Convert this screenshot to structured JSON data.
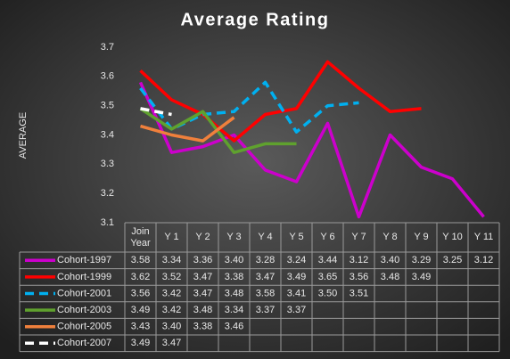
{
  "chart_data": {
    "type": "line",
    "title": "Average Rating",
    "y_label": "AVERAGE",
    "categories": [
      "Join Year",
      "Y 1",
      "Y 2",
      "Y 3",
      "Y 4",
      "Y 5",
      "Y 6",
      "Y 7",
      "Y 8",
      "Y 9",
      "Y 10",
      "Y 11"
    ],
    "ylim": [
      3.1,
      3.7
    ],
    "yticks": [
      3.1,
      3.2,
      3.3,
      3.4,
      3.5,
      3.6,
      3.7
    ],
    "grid": false,
    "series": [
      {
        "name": "Cohort-1997",
        "color": "#cc00cc",
        "dashed": false,
        "values": [
          3.58,
          3.34,
          3.36,
          3.4,
          3.28,
          3.24,
          3.44,
          3.12,
          3.4,
          3.29,
          3.25,
          3.12
        ],
        "value_labels": [
          "3.58",
          "3.34",
          "3.36",
          "3.40",
          "3.28",
          "3.24",
          "3.44",
          "3.12",
          "3.40",
          "3.29",
          "3.25",
          "3.12"
        ]
      },
      {
        "name": "Cohort-1999",
        "color": "#ff0000",
        "dashed": false,
        "values": [
          3.62,
          3.52,
          3.47,
          3.38,
          3.47,
          3.49,
          3.65,
          3.56,
          3.48,
          3.49,
          null,
          null
        ],
        "value_labels": [
          "3.62",
          "3.52",
          "3.47",
          "3.38",
          "3.47",
          "3.49",
          "3.65",
          "3.56",
          "3.48",
          "3.49",
          null,
          null
        ]
      },
      {
        "name": "Cohort-2001",
        "color": "#00b0f0",
        "dashed": true,
        "values": [
          3.56,
          3.42,
          3.47,
          3.48,
          3.58,
          3.41,
          3.5,
          3.51,
          null,
          null,
          null,
          null
        ],
        "value_labels": [
          "3.56",
          "3.42",
          "3.47",
          "3.48",
          "3.58",
          "3.41",
          "3.50",
          "3.51",
          null,
          null,
          null,
          null
        ]
      },
      {
        "name": "Cohort-2003",
        "color": "#5fa12e",
        "dashed": false,
        "values": [
          3.49,
          3.42,
          3.48,
          3.34,
          3.37,
          3.37,
          null,
          null,
          null,
          null,
          null,
          null
        ],
        "value_labels": [
          "3.49",
          "3.42",
          "3.48",
          "3.34",
          "3.37",
          "3.37",
          null,
          null,
          null,
          null,
          null,
          null
        ]
      },
      {
        "name": "Cohort-2005",
        "color": "#f0803c",
        "dashed": false,
        "values": [
          3.43,
          3.4,
          3.38,
          3.46,
          null,
          null,
          null,
          null,
          null,
          null,
          null,
          null
        ],
        "value_labels": [
          "3.43",
          "3.40",
          "3.38",
          "3.46",
          null,
          null,
          null,
          null,
          null,
          null,
          null,
          null
        ]
      },
      {
        "name": "Cohort-2007",
        "color": "#ffffff",
        "dashed": true,
        "values": [
          3.49,
          3.47,
          null,
          null,
          null,
          null,
          null,
          null,
          null,
          null,
          null,
          null
        ],
        "value_labels": [
          "3.49",
          "3.47",
          null,
          null,
          null,
          null,
          null,
          null,
          null,
          null,
          null,
          null
        ]
      }
    ]
  }
}
